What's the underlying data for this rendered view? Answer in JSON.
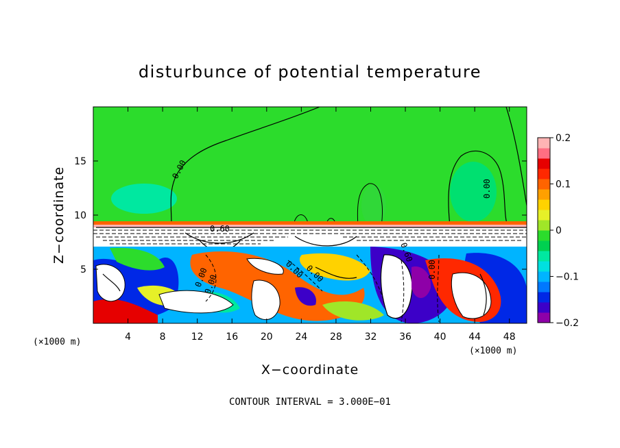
{
  "chart_data": {
    "type": "heatmap",
    "title": "disturbunce of potential temperature",
    "xlabel": "X−coordinate",
    "ylabel": "Z−coordinate",
    "x_unit": "(×1000 m)",
    "y_unit": "(×1000 m)",
    "xlim": [
      0,
      50
    ],
    "ylim": [
      0,
      20
    ],
    "x_ticks": [
      4,
      8,
      12,
      16,
      20,
      24,
      28,
      32,
      36,
      40,
      44,
      48
    ],
    "x_tick_labels": [
      "4",
      "8",
      "12",
      "16",
      "20",
      "24",
      "28",
      "32",
      "36",
      "40",
      "44",
      "48"
    ],
    "y_ticks": [
      5,
      10,
      15
    ],
    "y_tick_labels": [
      "5",
      "10",
      "15"
    ],
    "colorbar": {
      "range": [
        -0.2,
        0.2
      ],
      "ticks": [
        0.2,
        0.1,
        0,
        -0.1,
        -0.2
      ],
      "tick_labels": [
        "0.2",
        "0.1",
        "0",
        "−0.1",
        "−0.2"
      ],
      "colors": [
        "#8e00a8",
        "#3c00c8",
        "#0028e6",
        "#0078ff",
        "#00b4ff",
        "#00e0e0",
        "#00e8a0",
        "#00d050",
        "#2cdc2c",
        "#a0e628",
        "#e6f028",
        "#ffd200",
        "#ffa000",
        "#ff6400",
        "#ff2800",
        "#e60000",
        "#ff6e82",
        "#ffb4b4"
      ]
    },
    "contour_labels": [
      "0.00",
      "0.00",
      "0.00",
      "0.00",
      "0.60",
      "0.60",
      "0.00",
      "0.00",
      "0.00"
    ],
    "contour_interval_text": "CONTOUR INTERVAL = 3.000E−01"
  }
}
